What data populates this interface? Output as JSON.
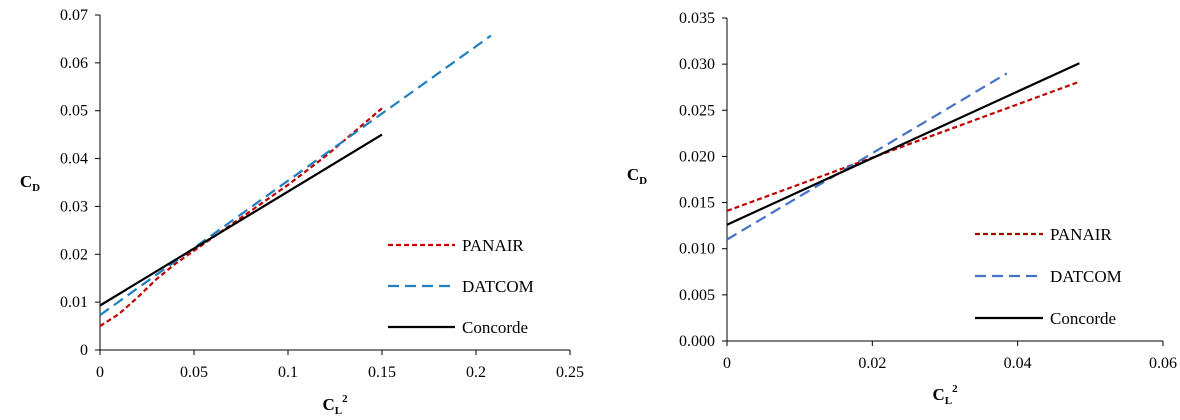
{
  "chart_data": [
    {
      "type": "line",
      "xlabel": "CL2",
      "ylabel": "CD",
      "xlim": [
        0,
        0.25
      ],
      "ylim": [
        0,
        0.07
      ],
      "x_ticks": [
        "0",
        "0.05",
        "0.1",
        "0.15",
        "0.2",
        "0.25"
      ],
      "y_ticks": [
        "0",
        "0.01",
        "0.02",
        "0.03",
        "0.04",
        "0.05",
        "0.06",
        "0.07"
      ],
      "legend": "right",
      "grid": false,
      "series": [
        {
          "name": "PANAIR",
          "color": "#c00000",
          "style": "dotted",
          "x": [
            0,
            0.01,
            0.02,
            0.03,
            0.04,
            0.06,
            0.08,
            0.1,
            0.12,
            0.15
          ],
          "y": [
            0.005,
            0.0075,
            0.011,
            0.0148,
            0.018,
            0.0235,
            0.029,
            0.0345,
            0.0405,
            0.0505
          ]
        },
        {
          "name": "DATCOM",
          "color": "#1f7fc0",
          "style": "dashed",
          "x": [
            0,
            0.208
          ],
          "y": [
            0.0073,
            0.0657
          ]
        },
        {
          "name": "Concorde",
          "color": "#000000",
          "style": "solid",
          "x": [
            0,
            0.15
          ],
          "y": [
            0.0093,
            0.045
          ]
        }
      ]
    },
    {
      "type": "line",
      "xlabel": "CL2",
      "ylabel": "CD",
      "xlim": [
        0,
        0.06
      ],
      "ylim": [
        0,
        0.035
      ],
      "x_ticks": [
        "0",
        "0.02",
        "0.04",
        "0.06"
      ],
      "y_ticks": [
        "0.000",
        "0.005",
        "0.010",
        "0.015",
        "0.020",
        "0.025",
        "0.030",
        "0.035"
      ],
      "legend": "right",
      "grid": false,
      "series": [
        {
          "name": "PANAIR",
          "color": "#c00000",
          "style": "dotted",
          "x": [
            0,
            0.0485
          ],
          "y": [
            0.0141,
            0.0281
          ]
        },
        {
          "name": "DATCOM",
          "color": "#4472c4",
          "style": "dashed",
          "x": [
            0,
            0.0385
          ],
          "y": [
            0.011,
            0.029
          ]
        },
        {
          "name": "Concorde",
          "color": "#000000",
          "style": "solid",
          "x": [
            0,
            0.0485
          ],
          "y": [
            0.0126,
            0.0301
          ]
        }
      ]
    }
  ]
}
